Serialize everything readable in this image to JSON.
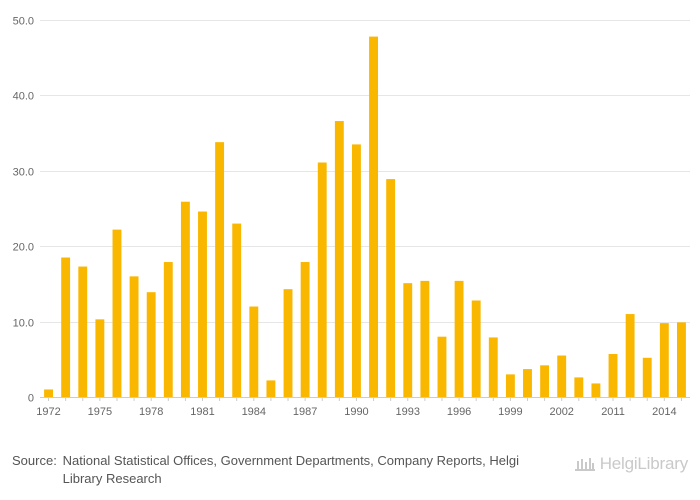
{
  "chart_data": {
    "type": "bar",
    "categories": [
      "1972",
      "1973",
      "1974",
      "1975",
      "1976",
      "1977",
      "1978",
      "1979",
      "1980",
      "1981",
      "1982",
      "1983",
      "1984",
      "1985",
      "1986",
      "1987",
      "1988",
      "1989",
      "1990",
      "1991",
      "1992",
      "1993",
      "1994",
      "1995",
      "1996",
      "1997",
      "1998",
      "1999",
      "2000",
      "2001",
      "2002",
      "2003",
      "2004",
      "2011",
      "2012",
      "2013",
      "2014",
      "2015"
    ],
    "values": [
      1.0,
      18.5,
      17.3,
      10.3,
      22.2,
      16.0,
      13.9,
      17.9,
      25.9,
      24.6,
      33.8,
      23.0,
      12.0,
      2.2,
      14.3,
      17.9,
      31.1,
      36.6,
      33.5,
      47.8,
      28.9,
      15.1,
      15.4,
      8.0,
      15.4,
      12.8,
      7.9,
      3.0,
      3.7,
      4.2,
      5.5,
      2.6,
      1.8,
      5.7,
      11.0,
      5.2,
      9.8,
      9.9
    ],
    "x_tick_labels": [
      "1972",
      "1975",
      "1978",
      "1981",
      "1984",
      "1987",
      "1990",
      "1993",
      "1996",
      "1999",
      "2002",
      "2011",
      "2014"
    ],
    "y_ticks": [
      "0",
      "10.0",
      "20.0",
      "30.0",
      "40.0",
      "50.0"
    ],
    "ylim": [
      0,
      50
    ],
    "title": "",
    "xlabel": "",
    "ylabel": "",
    "grid": true,
    "bar_color": "#fab700",
    "grid_color": "#e6e6e6",
    "axis_color": "#cccccc",
    "tick_text_color": "#666666"
  },
  "footer": {
    "source_label": "Source:",
    "source_text": "National Statistical Offices, Government Departments, Company Reports, Helgi Library Research",
    "logo_text": "HelgiLibrary",
    "logo_icon": "library-icon"
  }
}
